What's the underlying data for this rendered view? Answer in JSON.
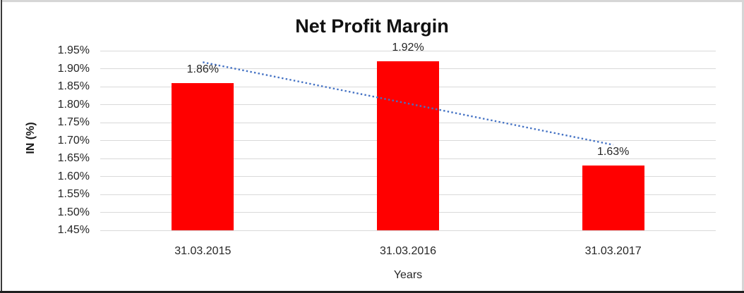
{
  "chart_data": {
    "type": "bar",
    "title": "Net Profit Margin",
    "xlabel": "Years",
    "ylabel": "IN (%)",
    "categories": [
      "31.03.2015",
      "31.03.2016",
      "31.03.2017"
    ],
    "values": [
      1.86,
      1.92,
      1.63
    ],
    "data_labels": [
      "1.86%",
      "1.92%",
      "1.63%"
    ],
    "ylim": [
      1.45,
      1.95
    ],
    "ytick_step": 0.05,
    "yticks": [
      "1.95%",
      "1.90%",
      "1.85%",
      "1.80%",
      "1.75%",
      "1.70%",
      "1.65%",
      "1.60%",
      "1.55%",
      "1.50%",
      "1.45%"
    ],
    "grid": true,
    "legend": "none",
    "bar_color": "#ff0000",
    "gridline_color": "#d9d9d9",
    "trendline": {
      "type": "linear",
      "style": "dotted",
      "color": "#4472c4",
      "start_value": 1.918,
      "end_value": 1.688
    }
  }
}
